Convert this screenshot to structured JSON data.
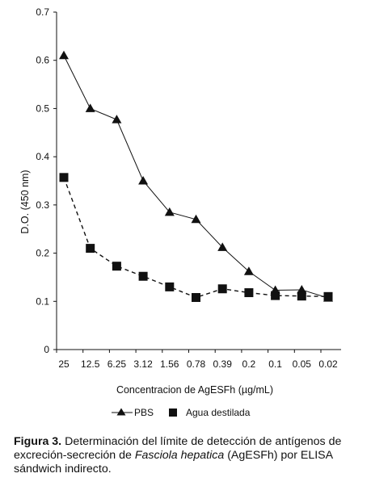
{
  "chart_data": {
    "type": "line",
    "categories": [
      "25",
      "12.5",
      "6.25",
      "3.12",
      "1.56",
      "0.78",
      "0.39",
      "0.2",
      "0.1",
      "0.05",
      "0.02"
    ],
    "series": [
      {
        "name": "PBS",
        "marker": "triangle",
        "line_style": "solid",
        "values": [
          0.61,
          0.5,
          0.477,
          0.35,
          0.285,
          0.27,
          0.212,
          0.162,
          0.123,
          0.124,
          0.107
        ]
      },
      {
        "name": "Agua destilada",
        "marker": "square",
        "line_style": "dashed",
        "values": [
          0.357,
          0.21,
          0.173,
          0.152,
          0.13,
          0.108,
          0.126,
          0.118,
          0.112,
          0.111,
          0.11
        ]
      }
    ],
    "ylim": [
      0,
      0.7
    ],
    "yticks": [
      "0",
      "0.1",
      "0.2",
      "0.3",
      "0.4",
      "0.5",
      "0.6",
      "0.7"
    ],
    "xlabel": "Concentracion de AgESFh (µg/mL)",
    "ylabel": "D.O. (450 nm)",
    "grid": false,
    "legend_position": "bottom-center",
    "line_color": "#111111"
  },
  "caption": {
    "label": "Figura 3.",
    "text_before": " Determinación del límite de detección de antígenos de excreción-secreción de ",
    "italic": "Fasciola hepatica",
    "text_after": " (AgESFh) por ELISA sándwich indirecto."
  }
}
